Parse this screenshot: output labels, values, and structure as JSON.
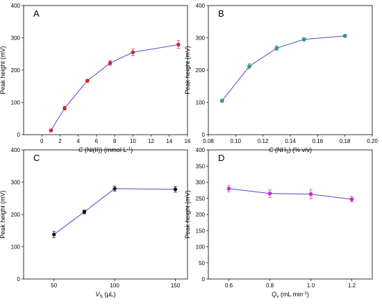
{
  "chart_data": [
    {
      "panel": "A",
      "type": "line",
      "xlabel": {
        "italic": "C",
        "rest": " (Ni(II)) (mmol L",
        "sup": "-1",
        "close": ")"
      },
      "ylabel": "Peak height (mV)",
      "xlim": [
        -2,
        16
      ],
      "ylim": [
        0,
        400
      ],
      "xticks": [
        0,
        2,
        4,
        6,
        8,
        10,
        12,
        14,
        16
      ],
      "yticks": [
        0,
        100,
        200,
        300,
        400
      ],
      "grid": false,
      "line_color": "#4a4ad6",
      "marker_color": "#e0222a",
      "series": [
        {
          "x": [
            1,
            2.5,
            5,
            7.5,
            10,
            15
          ],
          "y": [
            13,
            82,
            167,
            222,
            255,
            279
          ],
          "err": [
            4,
            6,
            4,
            7,
            10,
            12
          ]
        }
      ]
    },
    {
      "panel": "B",
      "type": "line",
      "xlabel": {
        "italic": "C",
        "rest": " (NH",
        "sub": "3",
        "close": ") (% v/v)"
      },
      "ylabel": "Peak height (mV)",
      "xlim": [
        0.08,
        0.2
      ],
      "ylim": [
        0,
        400
      ],
      "xticks": [
        0.08,
        0.1,
        0.12,
        0.14,
        0.16,
        0.18,
        0.2
      ],
      "xtick_labels": [
        "0.08",
        "0.10",
        "0.12",
        "0.14",
        "0.16",
        "0.18",
        "0.20"
      ],
      "yticks": [
        0,
        100,
        200,
        300,
        400
      ],
      "grid": false,
      "line_color": "#4a4ad6",
      "marker_color": "#2aa37a",
      "series": [
        {
          "x": [
            0.09,
            0.11,
            0.13,
            0.15,
            0.18
          ],
          "y": [
            105,
            212,
            268,
            295,
            306
          ],
          "err": [
            4,
            8,
            7,
            5,
            4
          ]
        }
      ]
    },
    {
      "panel": "C",
      "type": "line",
      "xlabel": {
        "italic": "V",
        "sub": "S",
        "close": " (µL)"
      },
      "ylabel": "Peak height (mV)",
      "xlim": [
        25,
        160
      ],
      "ylim": [
        0,
        400
      ],
      "xticks": [
        50,
        100,
        150
      ],
      "yticks": [
        0,
        100,
        200,
        300,
        400
      ],
      "grid": false,
      "line_color": "#4a4ad6",
      "marker_color": "#111111",
      "series": [
        {
          "x": [
            50,
            75,
            100,
            150
          ],
          "y": [
            138,
            208,
            280,
            278
          ],
          "err": [
            10,
            6,
            8,
            9
          ]
        }
      ]
    },
    {
      "panel": "D",
      "type": "line",
      "xlabel": {
        "italic": "Q",
        "sub": "v",
        "close": " (mL min",
        "sup": "-1",
        "close2": ")"
      },
      "ylabel": "Peak height (mV)",
      "xlim": [
        0.5,
        1.3
      ],
      "ylim": [
        0,
        400
      ],
      "xticks": [
        0.6,
        0.8,
        1.0,
        1.2
      ],
      "xtick_labels": [
        "0.6",
        "0.8",
        "1.0",
        "1.2"
      ],
      "yticks": [
        0,
        50,
        100,
        150,
        200,
        250,
        300,
        350,
        400
      ],
      "grid": false,
      "line_color": "#4a4ad6",
      "marker_color": "#e020e0",
      "series": [
        {
          "x": [
            0.6,
            0.8,
            1.0,
            1.2
          ],
          "y": [
            280,
            265,
            263,
            247
          ],
          "err": [
            10,
            12,
            14,
            8
          ]
        }
      ]
    }
  ]
}
